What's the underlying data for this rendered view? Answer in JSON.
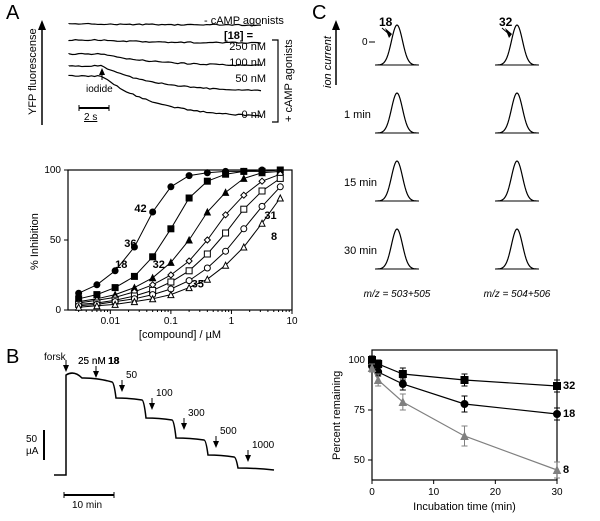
{
  "labels": {
    "A": "A",
    "B": "B",
    "C": "C"
  },
  "panelA_traces": {
    "ylabel": "YFP fluorescense",
    "scale_bar": "2 s",
    "iodide_arrow": "iodide",
    "header_right": "- cAMP agonists",
    "conc_label": "[18] =",
    "concentrations": [
      "250 nM",
      "100 nM",
      "50 nM",
      "0 nM"
    ],
    "bracket_label": "+ cAMP agonists",
    "colors": {
      "line": "#000000",
      "bg": "#ffffff"
    }
  },
  "panelA_chart": {
    "type": "line",
    "xlabel": "[compound] / µM",
    "ylabel": "% Inhibition",
    "xscale": "log",
    "xlim": [
      0.002,
      10
    ],
    "xticks": [
      0.01,
      0.1,
      1,
      10
    ],
    "xtick_labels": [
      "0.01",
      "0.1",
      "1",
      "10"
    ],
    "ylim": [
      0,
      100
    ],
    "yticks": [
      0,
      50,
      100
    ],
    "font_size": 11,
    "grid_color": "#000000",
    "bg": "#ffffff",
    "series": [
      {
        "name": "42",
        "marker": "circle",
        "fill": "#000000",
        "x": [
          0.003,
          0.006,
          0.012,
          0.025,
          0.05,
          0.1,
          0.2,
          0.4,
          0.8,
          1.6,
          3.2,
          6.4
        ],
        "y": [
          12,
          18,
          28,
          45,
          70,
          88,
          96,
          98,
          99,
          99,
          100,
          100
        ]
      },
      {
        "name": "36",
        "marker": "square",
        "fill": "#000000",
        "x": [
          0.003,
          0.006,
          0.012,
          0.025,
          0.05,
          0.1,
          0.2,
          0.4,
          0.8,
          1.6,
          3.2,
          6.4
        ],
        "y": [
          8,
          11,
          16,
          24,
          38,
          58,
          80,
          92,
          97,
          99,
          99,
          100
        ]
      },
      {
        "name": "18",
        "marker": "triangle",
        "fill": "#000000",
        "x": [
          0.003,
          0.006,
          0.012,
          0.025,
          0.05,
          0.1,
          0.2,
          0.4,
          0.8,
          1.6,
          3.2,
          6.4
        ],
        "y": [
          6,
          8,
          11,
          16,
          23,
          34,
          50,
          70,
          84,
          94,
          98,
          99
        ]
      },
      {
        "name": "32",
        "marker": "diamond",
        "fill": "#ffffff",
        "x": [
          0.003,
          0.006,
          0.012,
          0.025,
          0.05,
          0.1,
          0.2,
          0.4,
          0.8,
          1.6,
          3.2,
          6.4
        ],
        "y": [
          5,
          7,
          9,
          13,
          18,
          25,
          35,
          50,
          68,
          82,
          92,
          97
        ]
      },
      {
        "name": "35",
        "marker": "square",
        "fill": "#ffffff",
        "x": [
          0.003,
          0.006,
          0.012,
          0.025,
          0.05,
          0.1,
          0.2,
          0.4,
          0.8,
          1.6,
          3.2,
          6.4
        ],
        "y": [
          4,
          5,
          7,
          10,
          14,
          20,
          28,
          40,
          55,
          72,
          85,
          94
        ]
      },
      {
        "name": "31",
        "marker": "circle",
        "fill": "#ffffff",
        "x": [
          0.003,
          0.006,
          0.012,
          0.025,
          0.05,
          0.1,
          0.2,
          0.4,
          0.8,
          1.6,
          3.2,
          6.4
        ],
        "y": [
          3,
          4,
          6,
          8,
          11,
          15,
          21,
          30,
          42,
          58,
          74,
          88
        ]
      },
      {
        "name": "8",
        "marker": "triangle",
        "fill": "#ffffff",
        "x": [
          0.003,
          0.006,
          0.012,
          0.025,
          0.05,
          0.1,
          0.2,
          0.4,
          0.8,
          1.6,
          3.2,
          6.4
        ],
        "y": [
          2,
          3,
          4,
          6,
          8,
          11,
          16,
          22,
          32,
          45,
          62,
          80
        ]
      }
    ],
    "series_labels": [
      {
        "txt": "42",
        "x": 0.025,
        "y": 70,
        "bold": true
      },
      {
        "txt": "36",
        "x": 0.017,
        "y": 45,
        "bold": true
      },
      {
        "txt": "18",
        "x": 0.012,
        "y": 30,
        "bold": true
      },
      {
        "txt": "32",
        "x": 0.05,
        "y": 30,
        "bold": true
      },
      {
        "txt": "35",
        "x": 0.22,
        "y": 16,
        "bold": true
      },
      {
        "txt": "31",
        "x": 3.5,
        "y": 65,
        "bold": true
      },
      {
        "txt": "8",
        "x": 4.5,
        "y": 50,
        "bold": true
      }
    ]
  },
  "panelB": {
    "forsk": "forsk",
    "compound_label": "25 nM 18",
    "concentrations": [
      "50",
      "100",
      "300",
      "500",
      "1000"
    ],
    "yscale_label": "50\nµA",
    "xscale_label": "10 min",
    "line_color": "#000000"
  },
  "panelC_peaks": {
    "ylabel": "ion current",
    "left_header": "18",
    "right_header": "32",
    "rows": [
      "1 min",
      "15 min",
      "30 min"
    ],
    "left_mz": "m/z = 503+505",
    "right_mz": "m/z = 504+506",
    "zero": "0"
  },
  "panelC_chart": {
    "type": "line",
    "xlabel": "Incubation time (min)",
    "ylabel": "Percent remaining",
    "xlim": [
      0,
      30
    ],
    "xticks": [
      0,
      10,
      20,
      30
    ],
    "ylim": [
      40,
      105
    ],
    "yticks": [
      50,
      75,
      100
    ],
    "series": [
      {
        "name": "32",
        "marker": "square",
        "fill": "#000000",
        "x": [
          0,
          1,
          5,
          15,
          30
        ],
        "y": [
          100,
          98,
          93,
          90,
          87
        ],
        "err": [
          2,
          2,
          3,
          3,
          3
        ]
      },
      {
        "name": "18",
        "marker": "circle",
        "fill": "#000000",
        "x": [
          0,
          1,
          5,
          15,
          30
        ],
        "y": [
          97,
          94,
          88,
          78,
          73
        ],
        "err": [
          2,
          2,
          3,
          4,
          3
        ]
      },
      {
        "name": "8",
        "marker": "triangle",
        "fill": "#808080",
        "color": "#808080",
        "x": [
          0,
          1,
          5,
          15,
          30
        ],
        "y": [
          96,
          90,
          79,
          62,
          45
        ],
        "err": [
          2,
          3,
          4,
          5,
          4
        ]
      }
    ],
    "series_labels": [
      {
        "txt": "32",
        "x": 31,
        "y": 87
      },
      {
        "txt": "18",
        "x": 31,
        "y": 73
      },
      {
        "txt": "8",
        "x": 31,
        "y": 45
      }
    ]
  }
}
